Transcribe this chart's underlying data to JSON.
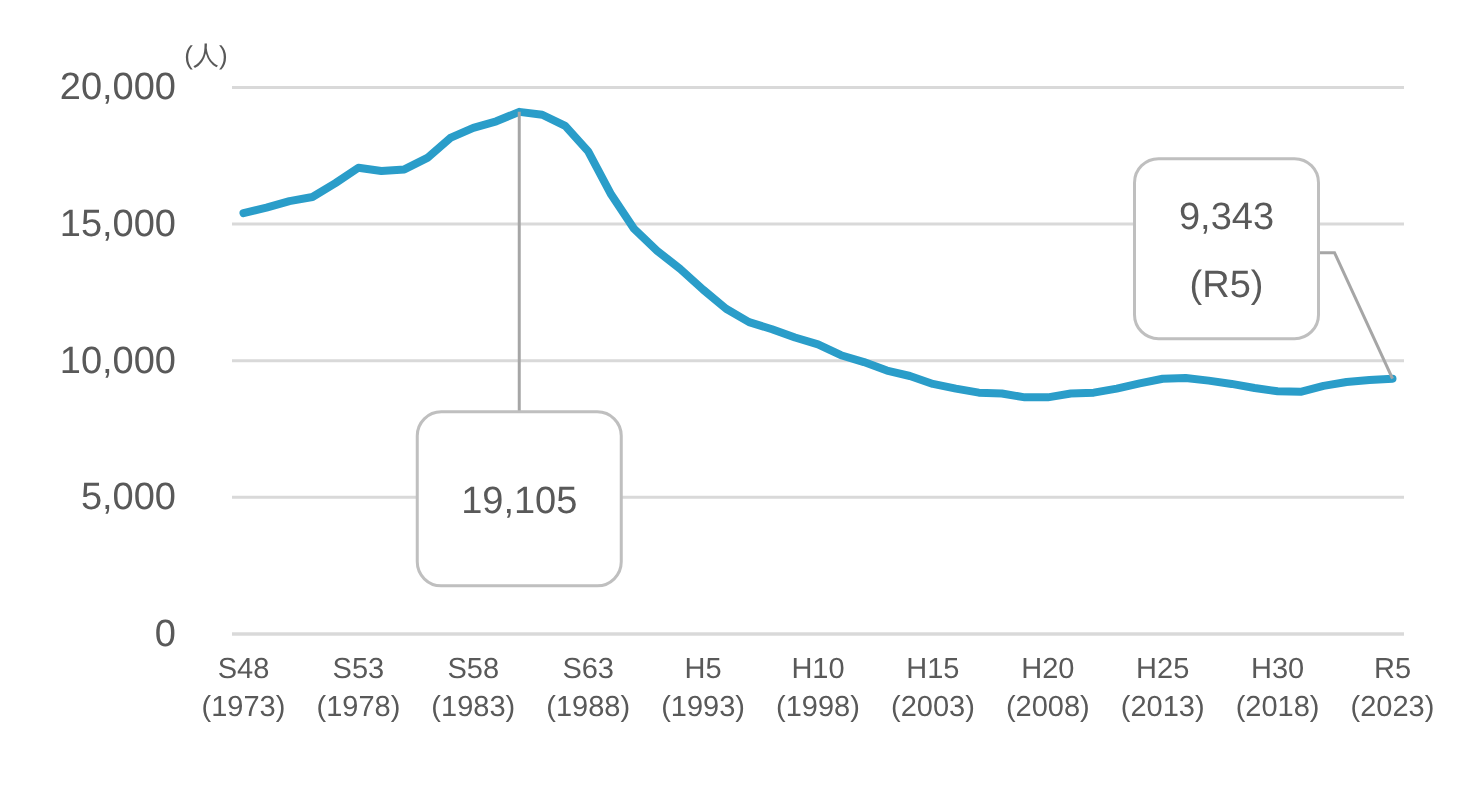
{
  "chart_data": {
    "type": "line",
    "ylabel": "(人)",
    "categories": [
      "S48\n(1973)",
      null,
      null,
      null,
      null,
      "S53\n(1978)",
      null,
      null,
      null,
      null,
      "S58\n(1983)",
      null,
      null,
      null,
      null,
      "S63\n(1988)",
      null,
      null,
      null,
      null,
      "H5\n(1993)",
      null,
      null,
      null,
      null,
      "H10\n(1998)",
      null,
      null,
      null,
      null,
      "H15\n(2003)",
      null,
      null,
      null,
      null,
      "H20\n(2008)",
      null,
      null,
      null,
      null,
      "H25\n(2013)",
      null,
      null,
      null,
      null,
      "H30\n(2018)",
      null,
      null,
      null,
      null,
      "R5\n(2023)"
    ],
    "series": [
      {
        "color": "#2a9dc9",
        "values": [
          15400,
          15600,
          15840,
          15990,
          16500,
          17060,
          16940,
          17000,
          17420,
          18150,
          18520,
          18760,
          19105,
          19000,
          18590,
          17660,
          16080,
          14820,
          14020,
          13360,
          12600,
          11900,
          11410,
          11150,
          10850,
          10600,
          10200,
          9950,
          9640,
          9440,
          9150,
          8980,
          8830,
          8800,
          8660,
          8660,
          8800,
          8830,
          8980,
          9170,
          9340,
          9370,
          9270,
          9150,
          9000,
          8880,
          8860,
          9080,
          9220,
          9290,
          9343
        ]
      }
    ],
    "ylim": [
      0,
      20000
    ],
    "yticks": [
      0,
      {
        "value": 5000,
        "label": "5,000"
      },
      {
        "value": 10000,
        "label": "10,000"
      },
      {
        "value": 15000,
        "label": "15,000"
      },
      {
        "value": 20000,
        "label": "20,000"
      }
    ],
    "grid": "y",
    "marker": "none",
    "line_style": "solid",
    "annotations": [
      "19,105",
      {
        "text": "9,343\n(R5)",
        "x": "R5\n(2023)",
        "y": 9343
      }
    ]
  }
}
